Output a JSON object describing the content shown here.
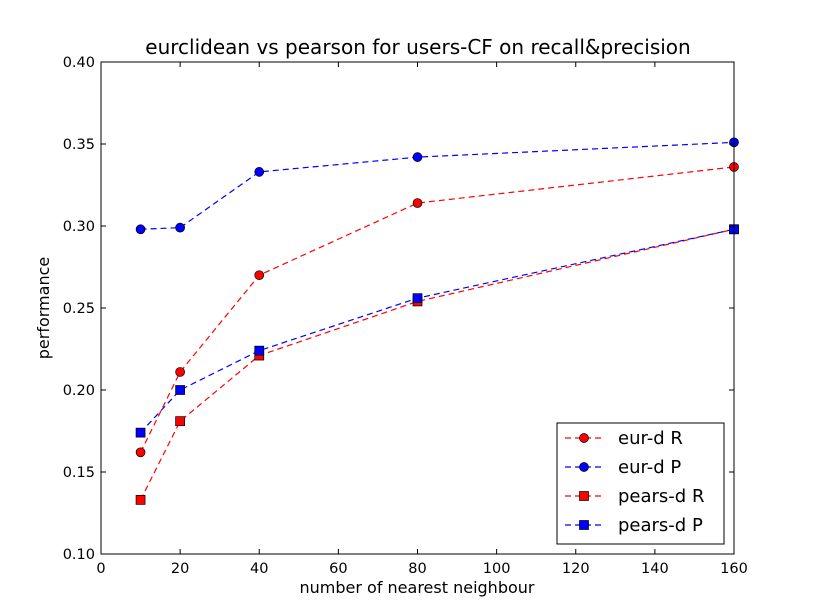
{
  "chart_data": {
    "type": "line",
    "title": "eurclidean vs pearson for users-CF on recall&precision",
    "xlabel": "number of nearest neighbour",
    "ylabel": "performance",
    "xlim": [
      0,
      160
    ],
    "ylim": [
      0.1,
      0.4
    ],
    "xticks": [
      "0",
      "20",
      "40",
      "60",
      "80",
      "100",
      "120",
      "140",
      "160"
    ],
    "yticks": [
      "0.10",
      "0.15",
      "0.20",
      "0.25",
      "0.30",
      "0.35",
      "0.40"
    ],
    "grid": false,
    "legend_position": "lower-right",
    "x": [
      10,
      20,
      40,
      80,
      160
    ],
    "series": [
      {
        "name": "eur-d R",
        "color": "#ff0000",
        "marker": "circle",
        "values": [
          0.162,
          0.211,
          0.27,
          0.314,
          0.336
        ]
      },
      {
        "name": "eur-d P",
        "color": "#0000ff",
        "marker": "circle",
        "values": [
          0.298,
          0.299,
          0.333,
          0.342,
          0.351
        ]
      },
      {
        "name": "pears-d R",
        "color": "#ff0000",
        "marker": "square",
        "values": [
          0.133,
          0.181,
          0.221,
          0.254,
          0.298
        ]
      },
      {
        "name": "pears-d P",
        "color": "#0000ff",
        "marker": "square",
        "values": [
          0.174,
          0.2,
          0.224,
          0.256,
          0.298
        ]
      }
    ]
  }
}
